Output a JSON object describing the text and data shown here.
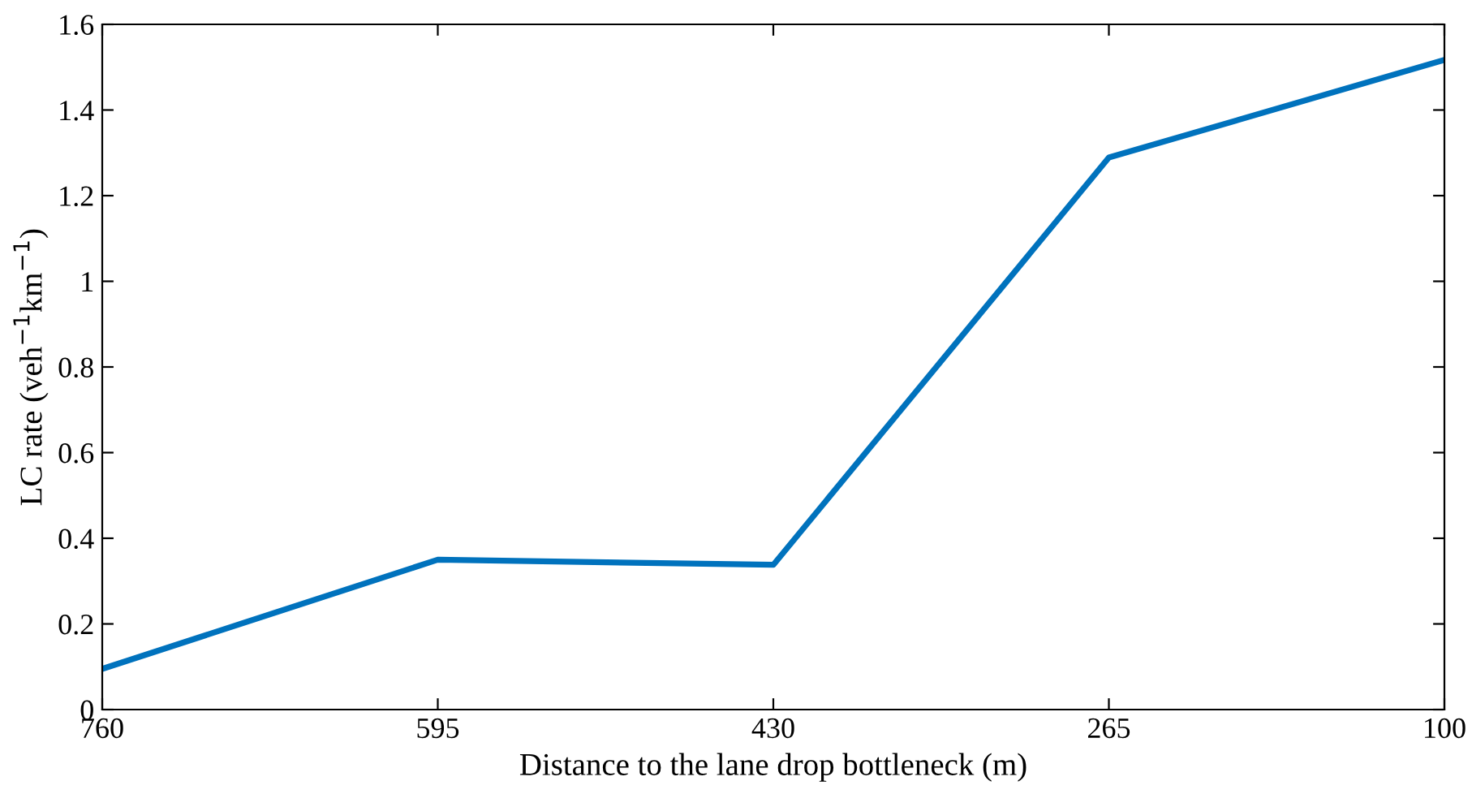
{
  "chart_data": {
    "type": "line",
    "xlabel": "Distance to the lane drop bottleneck (m)",
    "ylabel": "LC rate (veh$^{−1}$km$^{−1}$)",
    "x": [
      760,
      595,
      430,
      265,
      100
    ],
    "series": [
      {
        "color": "#0072bd",
        "values": [
          0.095,
          0.35,
          0.338,
          1.289,
          1.517
        ]
      }
    ],
    "xlim": [
      760,
      100
    ],
    "xticks": [
      760,
      595,
      430,
      265,
      100
    ],
    "ylim": [
      0,
      1.6
    ],
    "yticks": [
      0,
      0.2,
      0.4,
      0.6,
      0.8,
      1,
      1.2,
      1.4,
      1.6
    ],
    "grid": false,
    "legend": false,
    "marker": "none",
    "line_style": "solid"
  }
}
